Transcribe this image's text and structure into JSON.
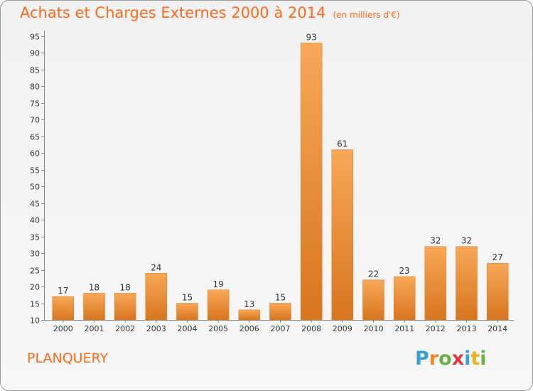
{
  "page": {
    "title": "Achats et Charges Externes 2000 à 2014",
    "unit_label": "(en milliers d'€)",
    "place": "PLANQUERY",
    "logo": {
      "letters": [
        "P",
        "r",
        "o",
        "x",
        "i",
        "t",
        "i"
      ],
      "colors": [
        "#3a9fd8",
        "#f28a1e",
        "#6ab04c",
        "#e8343c",
        "#3a9fd8",
        "#f2b01e",
        "#6ab04c"
      ]
    }
  },
  "chart_data": {
    "type": "bar",
    "title": "Achats et Charges Externes 2000 à 2014",
    "subtitle": "(en milliers d'€)",
    "categories": [
      "2000",
      "2001",
      "2002",
      "2003",
      "2004",
      "2005",
      "2006",
      "2007",
      "2008",
      "2009",
      "2010",
      "2011",
      "2012",
      "2013",
      "2014"
    ],
    "values": [
      17,
      18,
      18,
      24,
      15,
      19,
      13,
      15,
      93,
      61,
      22,
      23,
      32,
      32,
      27
    ],
    "ylim": [
      10,
      95
    ],
    "yticks": [
      10,
      15,
      20,
      25,
      30,
      35,
      40,
      45,
      50,
      55,
      60,
      65,
      70,
      75,
      80,
      85,
      90,
      95
    ],
    "grid": false,
    "colors": {
      "bar_light": "#f7a858",
      "bar_dark": "#d9751e",
      "bar_edge": "#e07b1f",
      "axis": "#888888",
      "text": "#333333"
    }
  }
}
